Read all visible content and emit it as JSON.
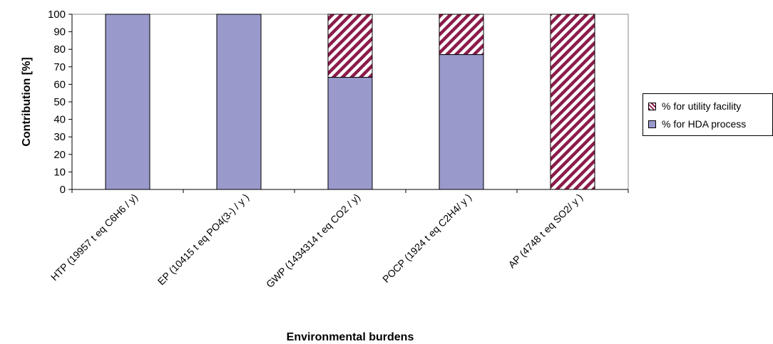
{
  "chart_data": {
    "type": "bar",
    "stacked": true,
    "categories": [
      "HTP (19957 t eq C6H6 / y)",
      "EP (10415 t eq PO4(3-) / y )",
      "GWP (1434314 t eq CO2 / y)",
      "POCP (1924 t eq C2H4/ y )",
      "AP (4748 t eq SO2/ y )"
    ],
    "series": [
      {
        "name": "%  for HDA process",
        "values": [
          100,
          100,
          64,
          77,
          0
        ],
        "color": "#9999cc",
        "pattern": "solid"
      },
      {
        "name": "%  for utility facility",
        "values": [
          0,
          0,
          36,
          23,
          100
        ],
        "color": "#8b1c4a",
        "pattern": "diagonal-hatch"
      }
    ],
    "xlabel": "Environmental  burdens",
    "ylabel": "Contribution [%]",
    "ylim": [
      0,
      100
    ],
    "yticks": [
      "0",
      "10",
      "20",
      "30",
      "40",
      "50",
      "60",
      "70",
      "80",
      "90",
      "100"
    ],
    "grid": false,
    "legend_position": "right"
  }
}
